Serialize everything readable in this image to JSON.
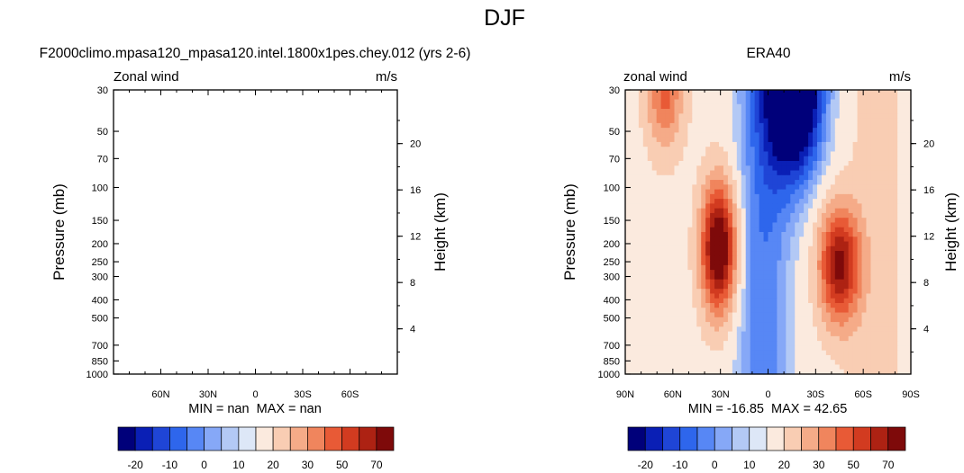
{
  "figure": {
    "main_title": "DJF"
  },
  "chart_data": [
    {
      "type": "contour",
      "title": "F2000climo.mpasa120_mpasa120.intel.1800x1pes.chey.012 (yrs 2-6)",
      "left_label": "Zonal wind",
      "right_label": "m/s",
      "ylabel": "Pressure (mb)",
      "ylabel_right": "Height (km)",
      "pressure_ticks": [
        "30",
        "50",
        "70",
        "100",
        "150",
        "200",
        "250",
        "300",
        "400",
        "500",
        "700",
        "850",
        "1000"
      ],
      "height_ticks": [
        "20",
        "16",
        "12",
        "8",
        "4"
      ],
      "lat_ticks": [
        "60N",
        "30N",
        "0",
        "30S",
        "60S"
      ],
      "stats": {
        "min_label": "MIN =",
        "min_value": "nan",
        "max_label": "MAX =",
        "max_value": "nan"
      },
      "has_data": false
    },
    {
      "type": "contour",
      "title": "ERA40",
      "left_label": "zonal wind",
      "right_label": "m/s",
      "ylabel": "Pressure (mb)",
      "ylabel_right": "Height (km)",
      "pressure_ticks": [
        "30",
        "50",
        "70",
        "100",
        "150",
        "200",
        "250",
        "300",
        "400",
        "500",
        "700",
        "850",
        "1000"
      ],
      "height_ticks": [
        "20",
        "16",
        "12",
        "8",
        "4"
      ],
      "lat_ticks": [
        "90N",
        "60N",
        "30N",
        "0",
        "30S",
        "60S",
        "90S"
      ],
      "stats": {
        "min_label": "MIN =",
        "min_value": "-16.85",
        "max_label": "MAX =",
        "max_value": "42.65"
      },
      "has_data": true,
      "field_max": 42.65,
      "field_min": -16.85
    }
  ],
  "colorbar": {
    "colors": [
      "#00007a",
      "#0a1fb5",
      "#1f45d6",
      "#2e66ec",
      "#5787f5",
      "#86a8f7",
      "#b3c9f5",
      "#dde7f7",
      "#fbeade",
      "#f9cdb3",
      "#f5ab88",
      "#f0855d",
      "#e85a36",
      "#d23b20",
      "#ad2213",
      "#7e0a0a"
    ],
    "tick_labels": [
      "-20",
      "-10",
      "0",
      "10",
      "20",
      "30",
      "50",
      "70"
    ]
  }
}
